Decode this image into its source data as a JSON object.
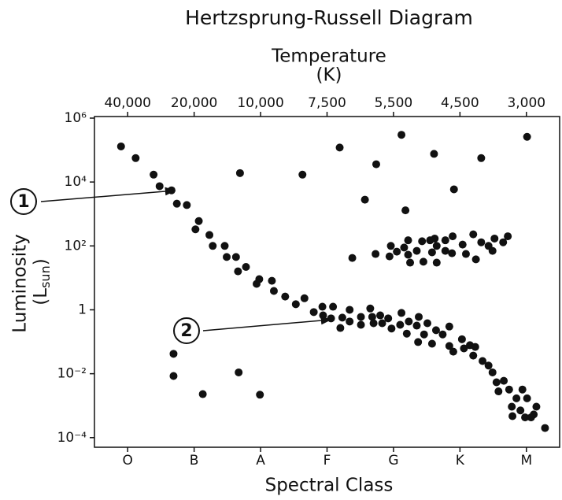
{
  "chart_data": {
    "type": "scatter",
    "title": "Hertzsprung-Russell Diagram",
    "x2label": "Temperature",
    "x2label_unit": "(K)",
    "xlabel": "Spectral Class",
    "ylabel": "Luminosity",
    "ylabel_unit": [
      "(L",
      "sun",
      ")"
    ],
    "log_y": true,
    "xlim": [
      0,
      7
    ],
    "xticks": [
      {
        "value": 0.5,
        "label": "O"
      },
      {
        "value": 1.5,
        "label": "B"
      },
      {
        "value": 2.5,
        "label": "A"
      },
      {
        "value": 3.5,
        "label": "F"
      },
      {
        "value": 4.5,
        "label": "G"
      },
      {
        "value": 5.5,
        "label": "K"
      },
      {
        "value": 6.5,
        "label": "M"
      }
    ],
    "x2ticks": [
      {
        "value": 40000,
        "label": "40,000"
      },
      {
        "value": 20000,
        "label": "20,000"
      },
      {
        "value": 10000,
        "label": "10,000"
      },
      {
        "value": 7500,
        "label": "7,500"
      },
      {
        "value": 5500,
        "label": "5,500"
      },
      {
        "value": 4500,
        "label": "4,500"
      },
      {
        "value": 3000,
        "label": "3,000"
      }
    ],
    "ylim": [
      5e-05,
      1120000
    ],
    "yticks": [
      {
        "value": 1000000,
        "label": "10⁶"
      },
      {
        "value": 10000,
        "label": "10⁴"
      },
      {
        "value": 100,
        "label": "10²"
      },
      1,
      {
        "value": 0.01,
        "label": "10⁻²"
      },
      {
        "value": 0.0001,
        "label": "10⁻⁴"
      }
    ],
    "annotations": [
      "1",
      "2"
    ],
    "series": [
      {
        "color": "#111111",
        "x": [
          0.4,
          0.62,
          0.89,
          0.98,
          1.16,
          1.24,
          1.39,
          1.57,
          1.52,
          1.73,
          1.78,
          1.96,
          1.99,
          2.13,
          2.16,
          2.28,
          2.44,
          2.48,
          2.67,
          2.7,
          2.87,
          3.03,
          3.16,
          3.3,
          3.43,
          3.44,
          3.59,
          3.56,
          3.7,
          3.73,
          3.84,
          3.84,
          4.01,
          4.01,
          4.15,
          4.18,
          4.2,
          4.3,
          4.33,
          4.42,
          4.47,
          4.6,
          4.62,
          4.7,
          4.73,
          4.85,
          4.87,
          4.88,
          4.96,
          5.01,
          5.08,
          5.14,
          5.24,
          5.34,
          5.34,
          5.4,
          5.53,
          5.56,
          5.65,
          5.7,
          5.73,
          5.84,
          5.93,
          5.99,
          6.05,
          6.08,
          6.16,
          6.24,
          6.28,
          6.35,
          6.44,
          6.51,
          6.61,
          6.65,
          6.41,
          6.57,
          6.29,
          6.78,
          6.48,
          3.88,
          4.23,
          4.44,
          4.46,
          4.55,
          4.66,
          4.72,
          4.72,
          4.85,
          4.93,
          4.95,
          5.05,
          5.08,
          5.15,
          5.15,
          5.28,
          5.38,
          5.39,
          5.54,
          5.59,
          5.74,
          5.7,
          5.82,
          5.93,
          6.02,
          5.99,
          6.15,
          6.22,
          4.75,
          5.12,
          5.28,
          2.19,
          3.13,
          3.69,
          4.62,
          5.11,
          5.82,
          6.51,
          4.24,
          4.07,
          4.68,
          5.41,
          1.19,
          1.19,
          1.63,
          2.17,
          2.49
        ],
        "values": [
          130000,
          56000,
          17000,
          7400,
          5500,
          2100,
          1900,
          600,
          330,
          220,
          100,
          100,
          45,
          45,
          16,
          22,
          6.5,
          9.1,
          8.1,
          3.9,
          2.6,
          1.5,
          2.3,
          0.85,
          1.25,
          0.67,
          1.25,
          0.54,
          0.27,
          0.57,
          0.43,
          1,
          0.6,
          0.34,
          1.1,
          0.6,
          0.38,
          0.67,
          0.38,
          0.54,
          0.26,
          0.34,
          0.8,
          0.18,
          0.43,
          0.32,
          0.098,
          0.6,
          0.17,
          0.38,
          0.087,
          0.23,
          0.17,
          0.074,
          0.3,
          0.049,
          0.12,
          0.062,
          0.078,
          0.037,
          0.069,
          0.025,
          0.018,
          0.011,
          0.0054,
          0.0028,
          0.006,
          0.0032,
          0.00093,
          0.0017,
          0.0032,
          0.0017,
          0.00053,
          0.00093,
          0.00071,
          0.00043,
          0.00047,
          0.0002,
          0.00043,
          42,
          56,
          47,
          100,
          66,
          89,
          150,
          53,
          70,
          140,
          32,
          150,
          63,
          30,
          100,
          70,
          59,
          200,
          110,
          56,
          38,
          230,
          130,
          100,
          170,
          70,
          130,
          200,
          30,
          170,
          150,
          19000,
          17000,
          120000,
          300000,
          76000,
          56000,
          260000,
          36000,
          2800,
          1300,
          5900,
          0.042,
          0.0085,
          0.0023,
          0.011,
          0.0022
        ]
      }
    ]
  }
}
